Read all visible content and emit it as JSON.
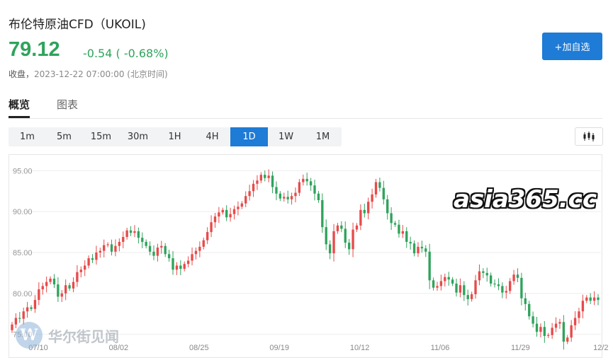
{
  "header": {
    "title": "布伦特原油CFD（UKOIL)",
    "price": "79.12",
    "change": "-0.54 ( -0.68%)",
    "status_label": "收盘，",
    "timestamp": "2023-12-22 07:00:00 (北京时间)",
    "add_button": "+加自选"
  },
  "tabs": [
    {
      "label": "概览",
      "active": true
    },
    {
      "label": "图表",
      "active": false
    }
  ],
  "periods": [
    "1m",
    "5m",
    "15m",
    "30m",
    "1H",
    "4H",
    "1D",
    "1W",
    "1M"
  ],
  "active_period": "1D",
  "watermark": "asia365.cc",
  "source_logo": "华尔街见闻",
  "colors": {
    "up": "#e84a4a",
    "down": "#2fa35c",
    "accent": "#1e7bd6"
  },
  "chart_data": {
    "type": "candlestick",
    "title": "",
    "xlabel": "",
    "ylabel": "",
    "ylim": [
      73.5,
      96.5
    ],
    "y_ticks": [
      "95.00",
      "90.00",
      "85.00",
      "80.00",
      "75.00"
    ],
    "x_ticks": [
      "07/10",
      "08/02",
      "08/25",
      "09/19",
      "10/12",
      "11/06",
      "11/29",
      "12/2"
    ],
    "grid": true,
    "closes": [
      76.2,
      77.0,
      76.9,
      77.8,
      78.3,
      78.1,
      79.2,
      80.5,
      80.9,
      81.4,
      81.8,
      81.1,
      79.6,
      80.0,
      81.0,
      80.6,
      81.4,
      82.6,
      82.9,
      83.4,
      84.3,
      84.1,
      85.0,
      85.2,
      85.9,
      86.0,
      85.1,
      85.8,
      86.3,
      86.9,
      87.7,
      87.4,
      87.6,
      86.8,
      86.3,
      85.8,
      85.1,
      84.6,
      85.6,
      85.8,
      84.8,
      84.3,
      82.9,
      83.4,
      83.0,
      83.6,
      84.0,
      84.8,
      85.2,
      85.7,
      86.5,
      87.5,
      88.7,
      89.4,
      89.9,
      90.2,
      89.3,
      89.7,
      90.3,
      90.6,
      91.0,
      91.9,
      92.5,
      93.4,
      93.8,
      94.5,
      94.1,
      94.4,
      93.0,
      92.2,
      91.6,
      91.8,
      91.5,
      91.9,
      92.3,
      93.6,
      94.0,
      93.7,
      93.2,
      92.2,
      91.4,
      88.1,
      86.0,
      84.9,
      87.6,
      88.3,
      87.9,
      86.2,
      85.4,
      87.8,
      88.3,
      90.2,
      89.8,
      91.2,
      92.1,
      93.6,
      92.9,
      91.5,
      89.8,
      88.6,
      88.4,
      87.3,
      87.6,
      86.3,
      86.1,
      84.9,
      85.7,
      85.5,
      85.1,
      81.6,
      80.7,
      80.9,
      81.5,
      82.0,
      81.7,
      81.2,
      80.1,
      81.0,
      79.8,
      79.3,
      79.9,
      81.6,
      82.7,
      82.5,
      82.2,
      81.2,
      81.1,
      80.9,
      80.1,
      80.3,
      81.5,
      82.3,
      81.9,
      79.4,
      78.7,
      77.2,
      76.3,
      75.3,
      75.9,
      74.8,
      74.9,
      75.8,
      76.3,
      76.5,
      74.1,
      74.6,
      76.1,
      77.0,
      77.8,
      79.1,
      79.5,
      79.1,
      79.5,
      79.2
    ]
  }
}
